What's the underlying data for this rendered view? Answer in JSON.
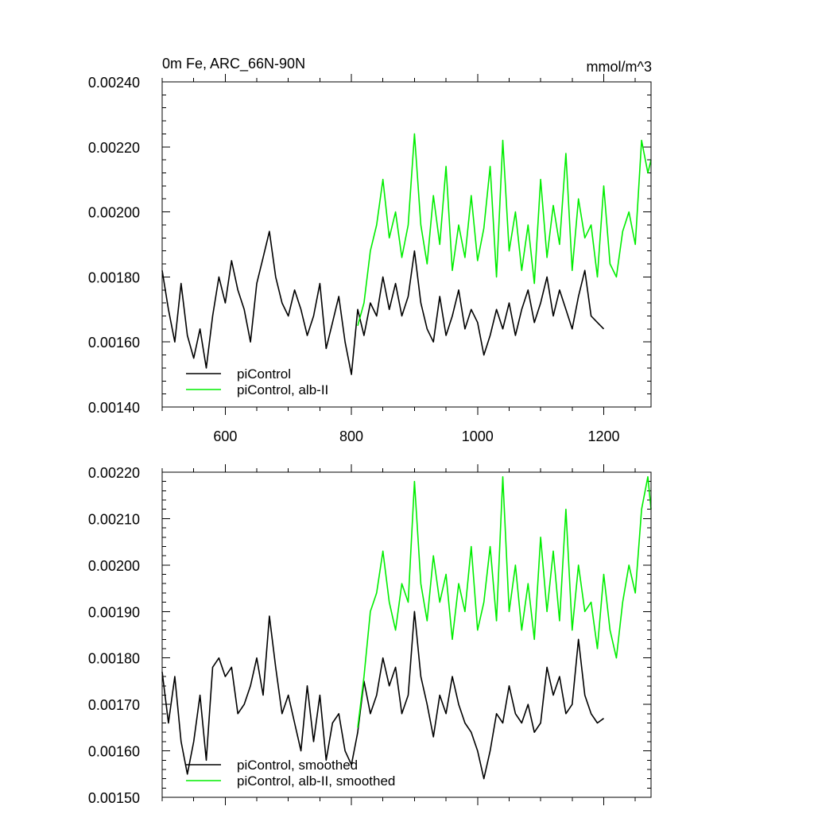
{
  "chart_data": [
    {
      "type": "line",
      "title": "0m Fe, ARC_66N-90N",
      "units": "mmol/m^3",
      "xlim": [
        500,
        1275
      ],
      "ylim": [
        0.0014,
        0.0024
      ],
      "xticks": [
        600,
        800,
        1000,
        1200
      ],
      "xtick_labels": [
        "600",
        "800",
        "1000",
        "1200"
      ],
      "yticks": [
        0.0014,
        0.0016,
        0.0018,
        0.002,
        0.0022,
        0.0024
      ],
      "ytick_labels": [
        "0.00140",
        "0.00160",
        "0.00180",
        "0.00200",
        "0.00220",
        "0.00240"
      ],
      "grid": false,
      "legend_position": "bottom-left",
      "series": [
        {
          "name": "piControl",
          "color": "#000000",
          "x": [
            500,
            510,
            520,
            530,
            540,
            550,
            560,
            570,
            580,
            590,
            600,
            610,
            620,
            630,
            640,
            650,
            660,
            670,
            680,
            690,
            700,
            710,
            720,
            730,
            740,
            750,
            760,
            770,
            780,
            790,
            800,
            810,
            820,
            830,
            840,
            850,
            860,
            870,
            880,
            890,
            900,
            910,
            920,
            930,
            940,
            950,
            960,
            970,
            980,
            990,
            1000,
            1010,
            1020,
            1030,
            1040,
            1050,
            1060,
            1070,
            1080,
            1090,
            1100,
            1110,
            1120,
            1130,
            1140,
            1150,
            1160,
            1170,
            1180,
            1190,
            1200
          ],
          "y": [
            0.00182,
            0.0017,
            0.0016,
            0.00178,
            0.00162,
            0.00155,
            0.00164,
            0.00152,
            0.00168,
            0.0018,
            0.00172,
            0.00185,
            0.00176,
            0.0017,
            0.0016,
            0.00178,
            0.00186,
            0.00194,
            0.0018,
            0.00172,
            0.00168,
            0.00176,
            0.0017,
            0.00162,
            0.00168,
            0.00178,
            0.00158,
            0.00166,
            0.00174,
            0.0016,
            0.0015,
            0.0017,
            0.00162,
            0.00172,
            0.00168,
            0.0018,
            0.0017,
            0.00178,
            0.00168,
            0.00174,
            0.00188,
            0.00172,
            0.00164,
            0.0016,
            0.00174,
            0.00162,
            0.00168,
            0.00176,
            0.00164,
            0.0017,
            0.00166,
            0.00156,
            0.00162,
            0.0017,
            0.00164,
            0.00172,
            0.00162,
            0.0017,
            0.00176,
            0.00166,
            0.00172,
            0.0018,
            0.00168,
            0.00176,
            0.0017,
            0.00164,
            0.00174,
            0.00182,
            0.00168,
            0.00166,
            0.00164
          ]
        },
        {
          "name": "piControl, alb-II",
          "color": "#00ee00",
          "x": [
            810,
            820,
            830,
            840,
            850,
            860,
            870,
            880,
            890,
            900,
            910,
            920,
            930,
            940,
            950,
            960,
            970,
            980,
            990,
            1000,
            1010,
            1020,
            1030,
            1040,
            1050,
            1060,
            1070,
            1080,
            1090,
            1100,
            1110,
            1120,
            1130,
            1140,
            1150,
            1160,
            1170,
            1180,
            1190,
            1200,
            1210,
            1220,
            1230,
            1240,
            1250,
            1260,
            1270,
            1275
          ],
          "y": [
            0.00165,
            0.00172,
            0.00188,
            0.00196,
            0.0021,
            0.00192,
            0.002,
            0.00186,
            0.00196,
            0.00224,
            0.00196,
            0.00184,
            0.00205,
            0.0019,
            0.00214,
            0.00182,
            0.00196,
            0.00186,
            0.00205,
            0.00185,
            0.00195,
            0.00214,
            0.0018,
            0.00222,
            0.00188,
            0.002,
            0.00182,
            0.00196,
            0.00178,
            0.0021,
            0.00186,
            0.00202,
            0.0019,
            0.00218,
            0.00182,
            0.00204,
            0.00192,
            0.00196,
            0.0018,
            0.00208,
            0.00184,
            0.0018,
            0.00194,
            0.002,
            0.0019,
            0.00222,
            0.00212,
            0.00216
          ]
        }
      ]
    },
    {
      "type": "line",
      "xlim": [
        500,
        1275
      ],
      "ylim": [
        0.0015,
        0.0022
      ],
      "xticks": [
        600,
        800,
        1000,
        1200
      ],
      "yticks": [
        0.0015,
        0.0016,
        0.0017,
        0.0018,
        0.0019,
        0.002,
        0.0021,
        0.0022
      ],
      "ytick_labels": [
        "0.00150",
        "0.00160",
        "0.00170",
        "0.00180",
        "0.00190",
        "0.00200",
        "0.00210",
        "0.00220"
      ],
      "grid": false,
      "legend_position": "bottom-left",
      "series": [
        {
          "name": "piControl, smoothed",
          "color": "#000000",
          "x": [
            500,
            510,
            520,
            530,
            540,
            550,
            560,
            570,
            580,
            590,
            600,
            610,
            620,
            630,
            640,
            650,
            660,
            670,
            680,
            690,
            700,
            710,
            720,
            730,
            740,
            750,
            760,
            770,
            780,
            790,
            800,
            810,
            820,
            830,
            840,
            850,
            860,
            870,
            880,
            890,
            900,
            910,
            920,
            930,
            940,
            950,
            960,
            970,
            980,
            990,
            1000,
            1010,
            1020,
            1030,
            1040,
            1050,
            1060,
            1070,
            1080,
            1090,
            1100,
            1110,
            1120,
            1130,
            1140,
            1150,
            1160,
            1170,
            1180,
            1190,
            1200
          ],
          "y": [
            0.00177,
            0.00166,
            0.00176,
            0.00162,
            0.00155,
            0.00162,
            0.00172,
            0.00158,
            0.00178,
            0.0018,
            0.00176,
            0.00178,
            0.00168,
            0.0017,
            0.00174,
            0.0018,
            0.00172,
            0.00189,
            0.00178,
            0.00168,
            0.00172,
            0.00166,
            0.0016,
            0.00174,
            0.00162,
            0.00172,
            0.00158,
            0.00166,
            0.00168,
            0.0016,
            0.00157,
            0.00164,
            0.00175,
            0.00168,
            0.00172,
            0.0018,
            0.00174,
            0.00178,
            0.00168,
            0.00172,
            0.0019,
            0.00176,
            0.0017,
            0.00163,
            0.00172,
            0.00168,
            0.00176,
            0.0017,
            0.00166,
            0.00164,
            0.0016,
            0.00154,
            0.0016,
            0.00168,
            0.00166,
            0.00174,
            0.00168,
            0.00166,
            0.0017,
            0.00164,
            0.00166,
            0.00178,
            0.00172,
            0.00176,
            0.00168,
            0.0017,
            0.00184,
            0.00172,
            0.00168,
            0.00166,
            0.00167
          ]
        },
        {
          "name": "piControl, alb-II, smoothed",
          "color": "#00ee00",
          "x": [
            810,
            820,
            830,
            840,
            850,
            860,
            870,
            880,
            890,
            900,
            910,
            920,
            930,
            940,
            950,
            960,
            970,
            980,
            990,
            1000,
            1010,
            1020,
            1030,
            1040,
            1050,
            1060,
            1070,
            1080,
            1090,
            1100,
            1110,
            1120,
            1130,
            1140,
            1150,
            1160,
            1170,
            1180,
            1190,
            1200,
            1210,
            1220,
            1230,
            1240,
            1250,
            1260,
            1270,
            1275
          ],
          "y": [
            0.00165,
            0.00176,
            0.0019,
            0.00194,
            0.00203,
            0.00192,
            0.00186,
            0.00196,
            0.00192,
            0.00218,
            0.00196,
            0.00188,
            0.00202,
            0.00192,
            0.00198,
            0.00184,
            0.00196,
            0.0019,
            0.00204,
            0.00186,
            0.00192,
            0.00204,
            0.00188,
            0.00219,
            0.0019,
            0.002,
            0.00186,
            0.00196,
            0.00184,
            0.00206,
            0.0019,
            0.00203,
            0.00188,
            0.00212,
            0.00186,
            0.002,
            0.0019,
            0.00192,
            0.00182,
            0.00198,
            0.00186,
            0.0018,
            0.00192,
            0.002,
            0.00194,
            0.00212,
            0.00219,
            0.00212
          ]
        }
      ]
    }
  ]
}
